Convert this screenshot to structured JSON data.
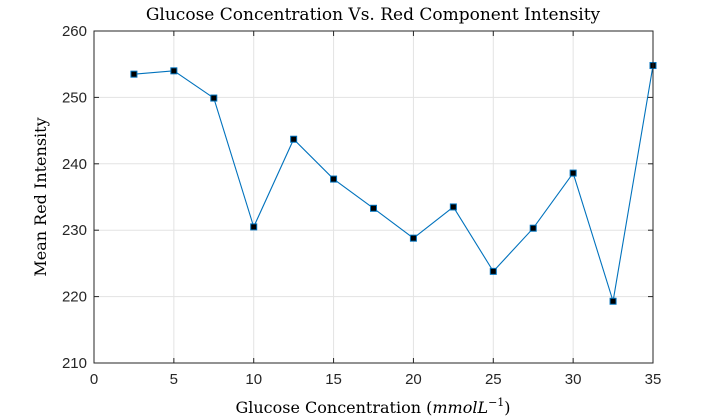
{
  "chart_data": {
    "type": "line",
    "title": "Glucose Concentration Vs. Red Component Intensity",
    "xlabel": "Glucose Concentration (",
    "xlabel_math": "mmolL",
    "xlabel_exponent": "−1",
    "xlabel_close": ")",
    "ylabel": "Mean Red Intensity",
    "xlim": [
      0,
      35
    ],
    "ylim": [
      210,
      260
    ],
    "xticks": [
      0,
      5,
      10,
      15,
      20,
      25,
      30,
      35
    ],
    "yticks": [
      210,
      220,
      230,
      240,
      250,
      260
    ],
    "grid": true,
    "series": [
      {
        "x": [
          2.5,
          5,
          7.5,
          10,
          12.5,
          15,
          17.5,
          20,
          22.5,
          25,
          27.5,
          30,
          32.5,
          35
        ],
        "y": [
          253.5,
          254.0,
          249.9,
          230.5,
          243.7,
          237.7,
          233.3,
          228.8,
          233.5,
          223.8,
          230.3,
          238.6,
          219.3,
          254.8
        ]
      }
    ],
    "colors": {
      "line": "#0072bd",
      "marker_fill": "#000000",
      "marker_edge": "#0072bd"
    }
  }
}
